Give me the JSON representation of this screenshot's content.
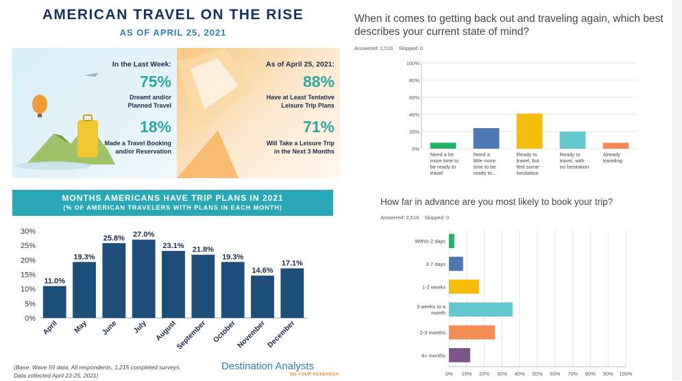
{
  "infographic": {
    "title": "AMERICAN TRAVEL ON THE RISE",
    "subtitle": "AS OF APRIL 25, 2021",
    "left_panel": {
      "heading": "In the Last Week:",
      "stats": [
        {
          "pct": "75%",
          "line1": "Dreamt and/or",
          "line2": "Planned Travel"
        },
        {
          "pct": "18%",
          "line1": "Made a Travel Booking",
          "line2": "and/or Reservation"
        }
      ]
    },
    "right_panel": {
      "heading": "As of April 25, 2021:",
      "stats": [
        {
          "pct": "88%",
          "line1": "Have at Least Tentative",
          "line2": "Leisure Trip Plans"
        },
        {
          "pct": "71%",
          "line1": "Will Take a Leisure Trip",
          "line2": "in the Next 3 Months"
        }
      ]
    },
    "banner": {
      "title": "MONTHS AMERICANS HAVE TRIP PLANS IN 2021",
      "subtitle": "(% OF AMERICAN TRAVELERS WITH PLANS IN EACH MONTH)"
    },
    "footnote": {
      "line1": "(Base: Wave 59 data. All respondents, 1,215 completed surveys.",
      "line2": "Data collected April 23-25, 2021)"
    },
    "logo": {
      "name": "Destination Analysts",
      "tagline": "DO YOUR RESEARCH"
    }
  },
  "survey": {
    "q1": {
      "question": "When it comes to getting back out and traveling again, which best describes your current state of mind?",
      "answered_label": "Answered: 2,516",
      "skipped_label": "Skipped: 0"
    },
    "q2": {
      "question": "How far in advance are you most likely to book your trip?",
      "answered_label": "Answered: 2,516",
      "skipped_label": "Skipped: 0"
    }
  },
  "colors": {
    "navy": "#1d4e79",
    "teal": "#2aa8b8",
    "green": "#23b268",
    "blue": "#4c78b4",
    "yellow": "#f5be0b",
    "aqua": "#63c9cf",
    "orange": "#f58b55",
    "purple": "#7d558a"
  },
  "chart_data": [
    {
      "type": "bar",
      "categories": [
        "April",
        "May",
        "June",
        "July",
        "August",
        "September",
        "October",
        "November",
        "December"
      ],
      "values": [
        11.0,
        19.3,
        25.8,
        27.0,
        23.1,
        21.8,
        19.3,
        14.6,
        17.1
      ],
      "data_labels": [
        "11.0%",
        "19.3%",
        "25.8%",
        "27.0%",
        "23.1%",
        "21.8%",
        "19.3%",
        "14.6%",
        "17.1%"
      ],
      "yticks": [
        "0%",
        "5%",
        "10%",
        "15%",
        "20%",
        "25%",
        "30%"
      ],
      "ylim": [
        0,
        30
      ],
      "grid": false
    },
    {
      "type": "bar",
      "categories": [
        [
          "Need a lot",
          "more time to",
          "be ready to",
          "travel"
        ],
        [
          "Need a",
          "little more",
          "time to be",
          "ready to..."
        ],
        [
          "Ready to",
          "travel, but",
          "feel some",
          "hesitation"
        ],
        [
          "Ready to",
          "travel, with",
          "no hesitation"
        ],
        [
          "Already",
          "traveling"
        ]
      ],
      "values": [
        7,
        24,
        41,
        20,
        7
      ],
      "colors": [
        "#23b268",
        "#4c78b4",
        "#f5be0b",
        "#63c9cf",
        "#f58b55"
      ],
      "yticks": [
        "0%",
        "20%",
        "40%",
        "60%",
        "80%",
        "100%"
      ],
      "ylim": [
        0,
        100
      ],
      "grid": true
    },
    {
      "type": "bar",
      "orientation": "horizontal",
      "categories": [
        [
          "Within 2 days"
        ],
        [
          "3-7 days"
        ],
        [
          "1-2 weeks"
        ],
        [
          "3 weeks to a",
          "month"
        ],
        [
          "2-3 months"
        ],
        [
          "4+ months"
        ]
      ],
      "values": [
        3,
        8,
        17,
        36,
        26,
        12
      ],
      "colors": [
        "#23b268",
        "#4c78b4",
        "#f5be0b",
        "#63c9cf",
        "#f58b55",
        "#7d558a"
      ],
      "xticks": [
        "0%",
        "10%",
        "20%",
        "30%",
        "40%",
        "50%",
        "60%",
        "70%",
        "80%",
        "90%",
        "100%"
      ],
      "xlim": [
        0,
        100
      ],
      "grid": true
    }
  ]
}
